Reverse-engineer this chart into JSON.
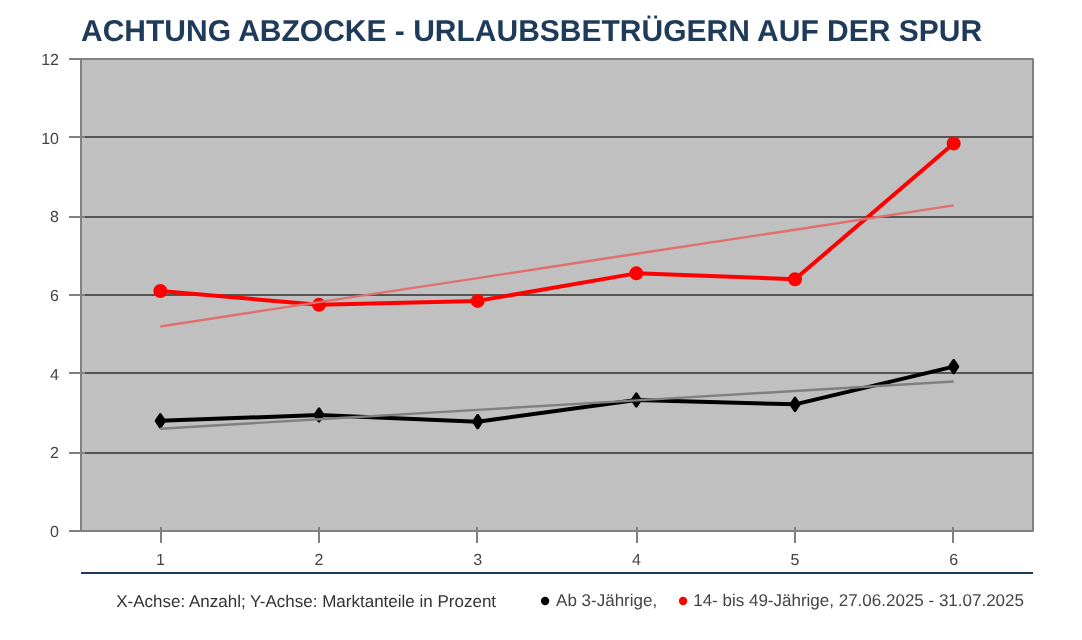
{
  "chart_data": {
    "type": "line",
    "title": "ACHTUNG ABZOCKE - URLAUBSBETRÜGERN AUF DER SPUR",
    "x": [
      1,
      2,
      3,
      4,
      5,
      6
    ],
    "xlim": [
      0.5,
      6.5
    ],
    "xticks": [
      1,
      2,
      3,
      4,
      5,
      6
    ],
    "ylim": [
      0,
      12
    ],
    "yticks": [
      0,
      2,
      4,
      6,
      8,
      10,
      12
    ],
    "grid": "y",
    "legend": "bottom",
    "line_style": "solid",
    "series": [
      {
        "name": "Ab 3-Jährige,",
        "color": "#000000",
        "marker": "diamond",
        "values": [
          2.8,
          2.95,
          2.78,
          3.33,
          3.22,
          4.18
        ]
      },
      {
        "name": "14- bis 49-Jährige, 27.06.2025 - 31.07.2025",
        "color": "#ff0000",
        "marker": "circle",
        "values": [
          6.1,
          5.75,
          5.85,
          6.55,
          6.4,
          9.85
        ]
      },
      {
        "type": "line",
        "color": "#808080",
        "marker": "none",
        "values": [
          2.6,
          2.84,
          3.08,
          3.32,
          3.56,
          3.8
        ]
      },
      {
        "type": "line",
        "color": "#e07070",
        "marker": "none",
        "values": [
          5.2,
          5.82,
          6.43,
          7.05,
          7.66,
          8.28
        ]
      }
    ],
    "annotations": [
      "X-Achse: Anzahl; Y-Achse: Marktanteile in Prozent"
    ]
  }
}
